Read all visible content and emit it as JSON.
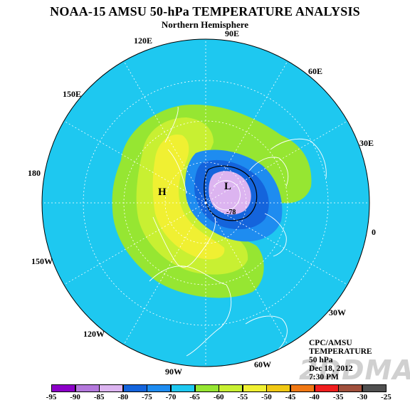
{
  "title": "NOAA-15 AMSU 50-hPa TEMPERATURE ANALYSIS",
  "subtitle": "Northern Hemisphere",
  "longitudes": [
    "90E",
    "120E",
    "60E",
    "150E",
    "30E",
    "180",
    "0",
    "150W",
    "30W",
    "120W",
    "90W",
    "60W"
  ],
  "centers": {
    "high": "H",
    "low": "L"
  },
  "contour_label": "-78",
  "info": [
    "CPC/AMSU",
    "TEMPERATURE",
    "50 hPa",
    "Dec 18, 2012",
    "7:30 PM"
  ],
  "watermark": "2DDMA",
  "legend": {
    "ticks": [
      "-95",
      "-90",
      "-85",
      "-80",
      "-75",
      "-70",
      "-65",
      "-60",
      "-55",
      "-50",
      "-45",
      "-40",
      "-35",
      "-30",
      "-25"
    ],
    "colors": [
      "#8c00c8",
      "#b478dc",
      "#dcb4f0",
      "#1464dc",
      "#1e8cf0",
      "#1ec8f0",
      "#96e632",
      "#c8f032",
      "#f0f032",
      "#f0c814",
      "#f07814",
      "#f01e1e",
      "#a0503c",
      "#505050"
    ]
  },
  "colors": {
    "background": "#1ec8f0",
    "green": "#96e632",
    "yellowgreen": "#c8f032",
    "yellow": "#f0f032",
    "blue_mid": "#1e8cf0",
    "blue_dark": "#1464dc",
    "lilac": "#dcb4f0"
  }
}
